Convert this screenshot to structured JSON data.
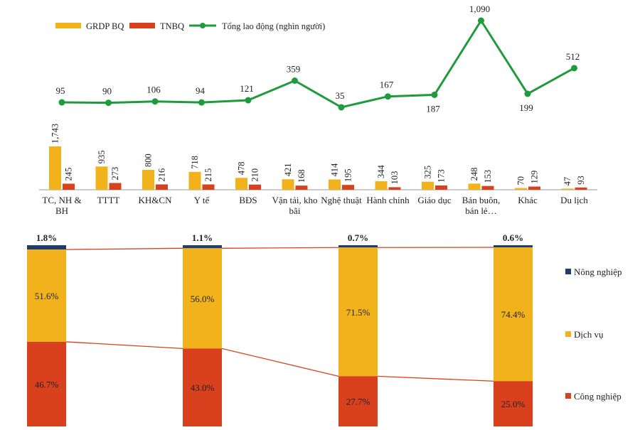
{
  "chart_data": [
    {
      "type": "bar",
      "categories": [
        "TC, NH & BH",
        "TTTT",
        "KH&CN",
        "Y tế",
        "BĐS",
        "Vận tải, kho bãi",
        "Nghệ thuật",
        "Hành chính",
        "Giáo dục",
        "Bán buôn, bán lẻ…",
        "Khác",
        "Du lịch"
      ],
      "category_lines": [
        [
          "TC, NH &",
          "BH"
        ],
        [
          "TTTT"
        ],
        [
          "KH&CN"
        ],
        [
          "Y tế"
        ],
        [
          "BĐS"
        ],
        [
          "Vận tải, kho",
          "bãi"
        ],
        [
          "Nghệ thuật"
        ],
        [
          "Hành chính"
        ],
        [
          "Giáo dục"
        ],
        [
          "Bán buôn,",
          "bán lẻ…"
        ],
        [
          "Khác"
        ],
        [
          "Du lịch"
        ]
      ],
      "series": [
        {
          "name": "GRDP BQ",
          "kind": "bar",
          "color": "#F2B21B",
          "values": [
            1743,
            935,
            800,
            718,
            478,
            421,
            414,
            344,
            325,
            248,
            70,
            47
          ],
          "labels": [
            "1,743",
            "935",
            "800",
            "718",
            "478",
            "421",
            "414",
            "344",
            "325",
            "248",
            "70",
            "47"
          ]
        },
        {
          "name": "TNBQ",
          "kind": "bar",
          "color": "#D9401E",
          "values": [
            245,
            273,
            216,
            215,
            210,
            168,
            195,
            103,
            173,
            153,
            129,
            93
          ],
          "labels": [
            "245",
            "273",
            "216",
            "215",
            "210",
            "168",
            "195",
            "103",
            "173",
            "153",
            "129",
            "93"
          ]
        },
        {
          "name": "Tổng lao động (nghìn người)",
          "kind": "line",
          "color": "#1F9A3C",
          "values": [
            95,
            90,
            106,
            94,
            121,
            359,
            35,
            167,
            187,
            1090,
            199,
            512
          ],
          "labels": [
            "95",
            "90",
            "106",
            "94",
            "121",
            "359",
            "35",
            "167",
            "187",
            "1,090",
            "199",
            "512"
          ]
        }
      ],
      "legend_position": "top-left",
      "grid": false
    },
    {
      "type": "bar",
      "stacked": true,
      "percent": true,
      "categories": [
        "",
        "",
        "",
        ""
      ],
      "series": [
        {
          "name": "Công nghiệp",
          "color": "#D9401E",
          "values": [
            46.7,
            43.0,
            27.7,
            25.0
          ],
          "labels": [
            "46.7%",
            "43.0%",
            "27.7%",
            "25.0%"
          ]
        },
        {
          "name": "Dịch vụ",
          "color": "#F2B21B",
          "values": [
            51.6,
            56.0,
            71.5,
            74.4
          ],
          "labels": [
            "51.6%",
            "56.0%",
            "71.5%",
            "74.4%"
          ]
        },
        {
          "name": "Nông nghiệp",
          "color": "#1F3E6E",
          "values": [
            1.8,
            1.1,
            0.7,
            0.6
          ],
          "labels": [
            "1.8%",
            "1.1%",
            "0.7%",
            "0.6%"
          ]
        }
      ],
      "legend_position": "right",
      "grid": false
    }
  ]
}
